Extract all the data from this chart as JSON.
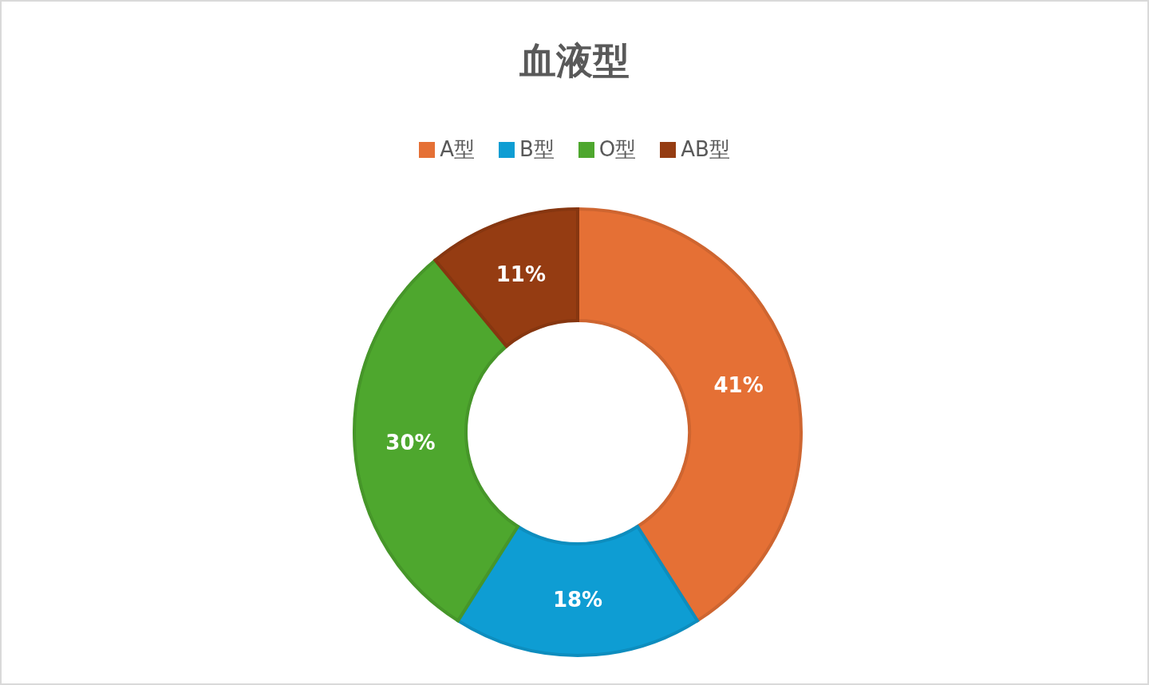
{
  "chart_data": {
    "type": "donut",
    "title": "血液型",
    "categories": [
      "A型",
      "B型",
      "O型",
      "AB型"
    ],
    "values": [
      41,
      18,
      30,
      11
    ],
    "colors": [
      "#e57035",
      "#0e9dd3",
      "#4ea72e",
      "#953c12"
    ],
    "value_labels": [
      "41%",
      "18%",
      "30%",
      "11%"
    ],
    "legend": "top"
  }
}
